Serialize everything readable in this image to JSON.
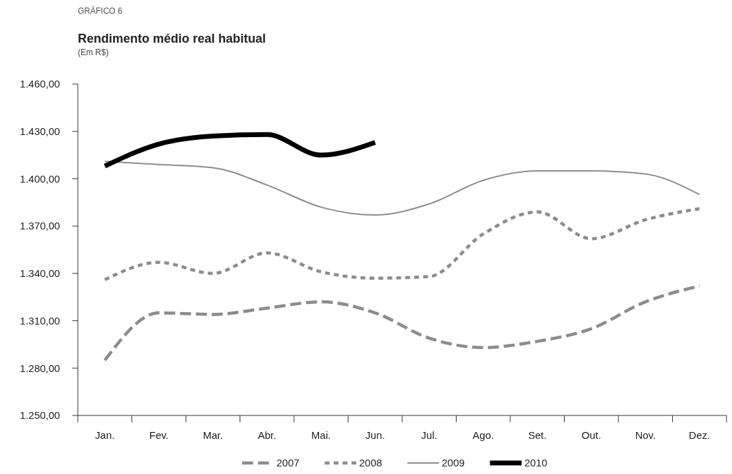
{
  "chart_data": {
    "type": "line",
    "title": "Rendimento médio real habitual",
    "subtitle": "(Em R$)",
    "annotations": [
      "GRÁFICO 6"
    ],
    "categories": [
      "Jan.",
      "Fev.",
      "Mar.",
      "Abr.",
      "Mai.",
      "Jun.",
      "Jul.",
      "Ago.",
      "Set.",
      "Out.",
      "Nov.",
      "Dez."
    ],
    "series": [
      {
        "name": "2007",
        "color": "#8c8c8c",
        "line_style": "dashed",
        "values": [
          1285,
          1315,
          1314,
          1318,
          1322,
          1315,
          1299,
          1293,
          1297,
          1305,
          1322,
          1332
        ]
      },
      {
        "name": "2008",
        "color": "#8c8c8c",
        "line_style": "dotted",
        "values": [
          1336,
          1347,
          1340,
          1353,
          1341,
          1337,
          1338,
          1365,
          1379,
          1362,
          1374,
          1381
        ]
      },
      {
        "name": "2009",
        "color": "#8c8c8c",
        "line_style": "solid",
        "values": [
          1411,
          1409,
          1407,
          1396,
          1382,
          1377,
          1384,
          1399,
          1405,
          1405,
          1403,
          1390
        ]
      },
      {
        "name": "2010",
        "color": "#000000",
        "line_style": "solid",
        "values": [
          1408,
          1422,
          1427,
          1428,
          1415,
          1423,
          null,
          null,
          null,
          null,
          null,
          null
        ]
      }
    ],
    "ylim": [
      1250,
      1460
    ],
    "yticks": [
      {
        "value": 1250,
        "label": "1.250,00"
      },
      {
        "value": 1280,
        "label": "1.280,00"
      },
      {
        "value": 1310,
        "label": "1.310,00"
      },
      {
        "value": 1340,
        "label": "1.340,00"
      },
      {
        "value": 1370,
        "label": "1.370,00"
      },
      {
        "value": 1400,
        "label": "1.400,00"
      },
      {
        "value": 1430,
        "label": "1.430,00"
      },
      {
        "value": 1460,
        "label": "1.460,00"
      }
    ],
    "grid": false,
    "legend": "bottom"
  }
}
